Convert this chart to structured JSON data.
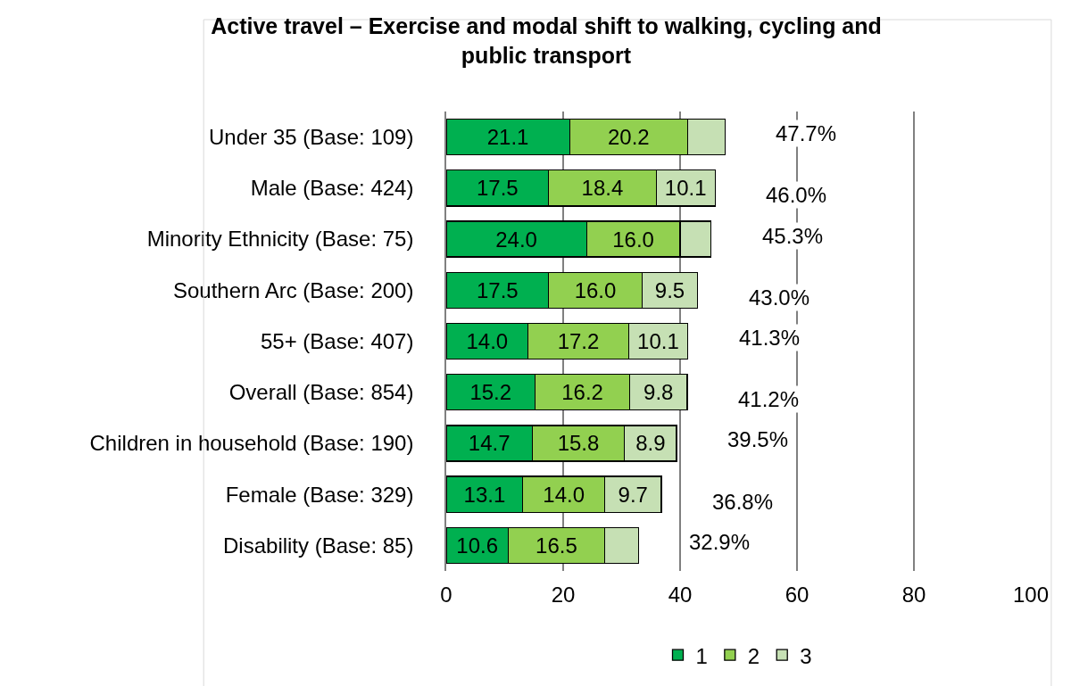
{
  "chart_data": {
    "type": "bar",
    "orientation": "horizontal",
    "stacked": true,
    "title": "Active travel – Exercise and modal shift to walking, cycling and public transport",
    "categories": [
      "Under 35 (Base: 109)",
      "Male (Base: 424)",
      "Minority Ethnicity (Base: 75)",
      "Southern Arc (Base: 200)",
      "55+ (Base: 407)",
      "Overall (Base: 854)",
      "Children in household (Base: 190)",
      "Female (Base: 329)",
      "Disability (Base: 85)"
    ],
    "series": [
      {
        "name": "1",
        "color": "#00b050",
        "values": [
          21.1,
          17.5,
          24.0,
          17.5,
          14.0,
          15.2,
          14.7,
          13.1,
          10.6
        ],
        "value_labels": [
          "21.1",
          "17.5",
          "24.0",
          "17.5",
          "14.0",
          "15.2",
          "14.7",
          "13.1",
          "10.6"
        ]
      },
      {
        "name": "2",
        "color": "#92d050",
        "values": [
          20.2,
          18.4,
          16.0,
          16.0,
          17.2,
          16.2,
          15.8,
          14.0,
          16.5
        ],
        "value_labels": [
          "20.2",
          "18.4",
          "16.0",
          "16.0",
          "17.2",
          "16.2",
          "15.8",
          "14.0",
          "16.5"
        ]
      },
      {
        "name": "3",
        "color": "#c6e0b4",
        "values": [
          6.4,
          10.1,
          5.3,
          9.5,
          10.1,
          9.8,
          8.9,
          9.7,
          5.8
        ],
        "value_labels": [
          null,
          "10.1",
          null,
          "9.5",
          "10.1",
          "9.8",
          "8.9",
          "9.7",
          null
        ]
      }
    ],
    "totals": [
      "47.7%",
      "46.0%",
      "45.3%",
      "43.0%",
      "41.3%",
      "41.2%",
      "39.5%",
      "36.8%",
      "32.9%"
    ],
    "xlim": [
      0,
      100
    ],
    "xticks": [
      0,
      20,
      40,
      60,
      80,
      100
    ],
    "grid": "x",
    "legend": "bottom"
  }
}
